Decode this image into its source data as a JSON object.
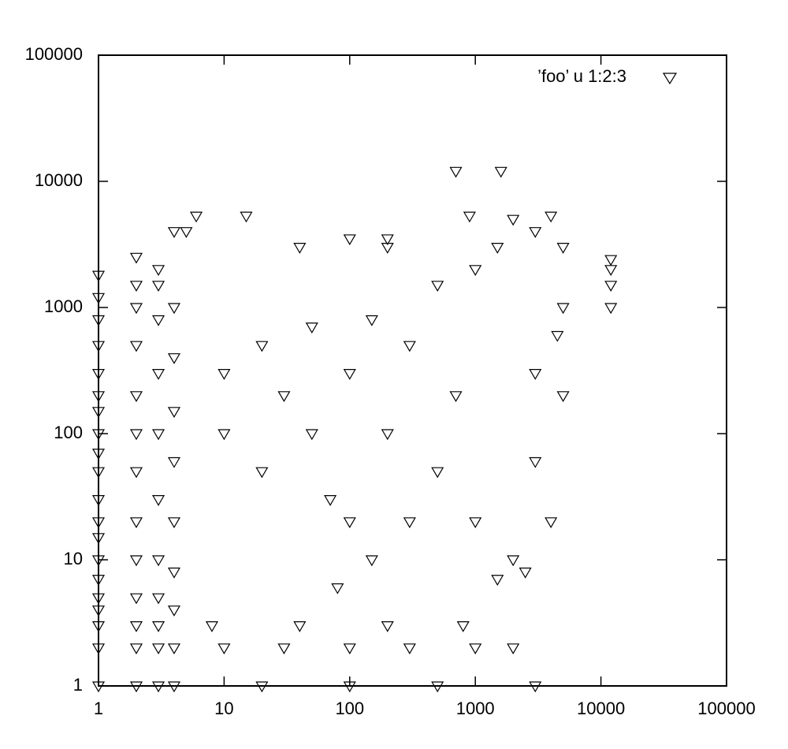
{
  "chart_data": {
    "type": "scatter",
    "log_x": true,
    "log_y": true,
    "xlim": [
      1,
      100000
    ],
    "ylim": [
      1,
      100000
    ],
    "xticks": [
      1,
      10,
      100,
      1000,
      10000,
      100000
    ],
    "yticks": [
      1,
      10,
      100,
      1000,
      10000,
      100000
    ],
    "legend_position": "top-right",
    "series": [
      {
        "name": "’foo’ u 1:2:3",
        "color": "#000000",
        "x": [
          1,
          1,
          1,
          1,
          1,
          1,
          1,
          1,
          1,
          1,
          1,
          1,
          1,
          1,
          1,
          1,
          1,
          1,
          1,
          1,
          2,
          2,
          2,
          2,
          2,
          2,
          2,
          2,
          2,
          2,
          2,
          2,
          2,
          3,
          3,
          3,
          3,
          3,
          3,
          3,
          3,
          3,
          3,
          3,
          4,
          4,
          4,
          4,
          4,
          4,
          4,
          4,
          4,
          4,
          10,
          30,
          100,
          300,
          1000,
          2000,
          8,
          40,
          200,
          800,
          20,
          100,
          500,
          3000,
          10,
          10,
          20,
          20,
          30,
          50,
          50,
          70,
          100,
          100,
          150,
          200,
          200,
          300,
          500,
          500,
          700,
          1000,
          1000,
          1500,
          2000,
          3000,
          3000,
          5000,
          5000,
          5000,
          4000,
          2000,
          1500,
          40,
          6,
          15,
          5,
          700,
          1600,
          12000,
          12000,
          12000,
          12000,
          900,
          4000,
          300,
          150,
          80,
          3000,
          4500,
          2500,
          200,
          100
        ],
        "values": [
          1,
          2,
          3,
          4,
          5,
          7,
          10,
          15,
          20,
          30,
          50,
          70,
          100,
          150,
          200,
          300,
          500,
          800,
          1200,
          1800,
          1,
          2,
          3,
          5,
          10,
          20,
          50,
          100,
          200,
          500,
          1000,
          1500,
          2500,
          1,
          2,
          3,
          5,
          10,
          30,
          100,
          300,
          800,
          1500,
          2000,
          1,
          2,
          4,
          8,
          20,
          60,
          150,
          400,
          1000,
          4000,
          2,
          2,
          2,
          2,
          2,
          2,
          3,
          3,
          3,
          3,
          1,
          1,
          1,
          1,
          100,
          300,
          50,
          500,
          200,
          100,
          700,
          30,
          20,
          300,
          800,
          100,
          3000,
          500,
          50,
          1500,
          200,
          2000,
          20,
          3000,
          5000,
          4000,
          300,
          200,
          1000,
          3000,
          20,
          10,
          7,
          3000,
          5300,
          5300,
          4000,
          12000,
          12000,
          2400,
          2000,
          1500,
          1000,
          5300,
          5300,
          20,
          10,
          6,
          60,
          600,
          8,
          3500,
          3500
        ]
      }
    ]
  }
}
